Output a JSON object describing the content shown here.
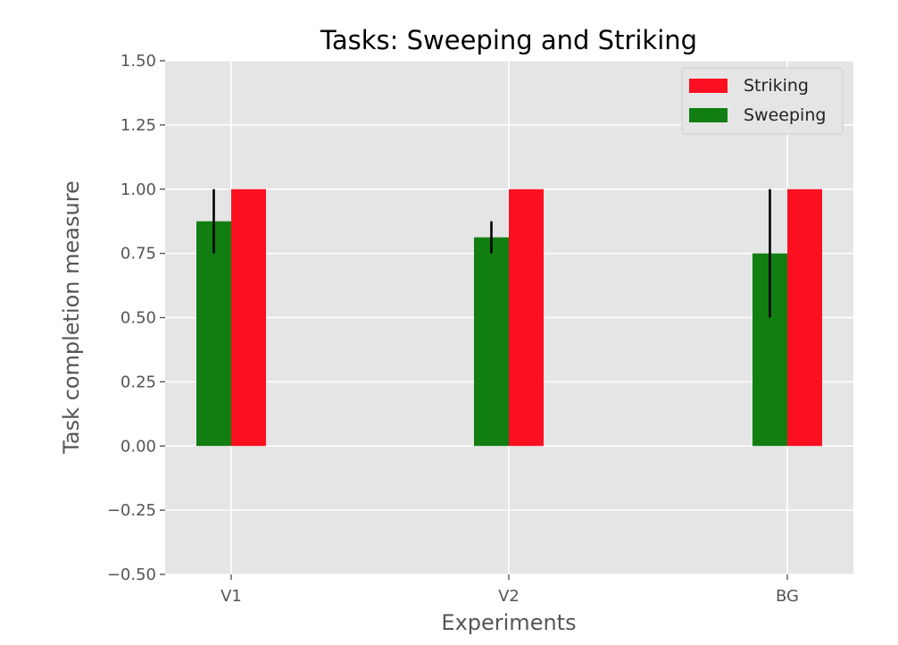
{
  "chart_data": {
    "type": "bar",
    "title": "Tasks: Sweeping and Striking",
    "xlabel": "Experiments",
    "ylabel": "Task completion measure",
    "categories": [
      "V1",
      "V2",
      "BG"
    ],
    "ylim": [
      -0.5,
      1.5
    ],
    "yticks": [
      -0.5,
      -0.25,
      0.0,
      0.25,
      0.5,
      0.75,
      1.0,
      1.25,
      1.5
    ],
    "ytick_labels": [
      "−0.50",
      "−0.25",
      "0.00",
      "0.25",
      "0.50",
      "0.75",
      "1.00",
      "1.25",
      "1.50"
    ],
    "grid": true,
    "legend_position": "top-right",
    "series": [
      {
        "name": "Sweeping",
        "color": "#117e11",
        "values": [
          0.875,
          0.8125,
          0.75
        ],
        "error": [
          0.125,
          0.0625,
          0.25
        ]
      },
      {
        "name": "Striking",
        "color": "#fb0f21",
        "values": [
          1.0,
          1.0,
          1.0
        ]
      }
    ],
    "legend_order": [
      "Striking",
      "Sweeping"
    ],
    "plot_background": "#e5e5e5",
    "grid_color": "#ffffff",
    "error_bar_color": "#000000"
  }
}
